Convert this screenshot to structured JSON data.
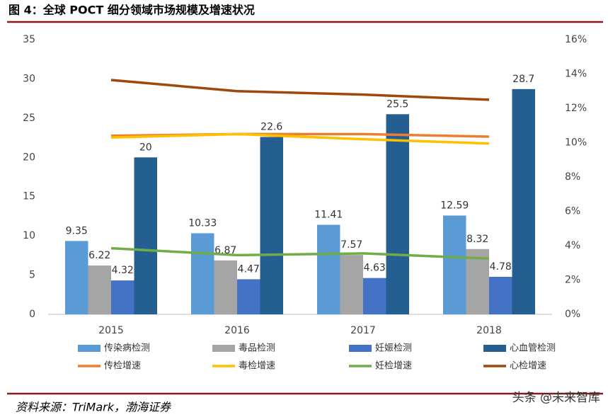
{
  "chart_data": {
    "type": "combo",
    "title": "图 4：全球 POCT 细分领域市场规模及增速状况",
    "categories": [
      "2015",
      "2016",
      "2017",
      "2018"
    ],
    "series": [
      {
        "name": "传染病检测",
        "type": "bar",
        "color": "#5b9bd5",
        "values": [
          9.35,
          10.33,
          11.41,
          12.59
        ]
      },
      {
        "name": "毒品检测",
        "type": "bar",
        "color": "#a5a5a5",
        "values": [
          6.22,
          6.87,
          7.57,
          8.32
        ]
      },
      {
        "name": "妊娠检测",
        "type": "bar",
        "color": "#4472c4",
        "values": [
          4.32,
          4.47,
          4.63,
          4.78
        ]
      },
      {
        "name": "心血管检测",
        "type": "bar",
        "color": "#255e91",
        "values": [
          20,
          22.6,
          25.5,
          28.7
        ]
      },
      {
        "name": "传检增速",
        "type": "line",
        "axis": "y2",
        "color": "#ed7d31",
        "values": [
          10.4,
          10.5,
          10.5,
          10.35
        ]
      },
      {
        "name": "毒检增速",
        "type": "line",
        "axis": "y2",
        "color": "#ffc000",
        "values": [
          10.3,
          10.5,
          10.2,
          9.95
        ]
      },
      {
        "name": "妊检增速",
        "type": "line",
        "axis": "y2",
        "color": "#70ad47",
        "values": [
          3.85,
          3.45,
          3.55,
          3.25
        ]
      },
      {
        "name": "心检增速",
        "type": "line",
        "axis": "y2",
        "color": "#9e480e",
        "values": [
          13.65,
          13.0,
          12.8,
          12.5
        ]
      }
    ],
    "ylim": [
      0,
      35
    ],
    "yticks": [
      0,
      5,
      10,
      15,
      20,
      25,
      30,
      35
    ],
    "y2lim": [
      0,
      16
    ],
    "y2ticks": [
      {
        "value": 0,
        "label": "0%"
      },
      {
        "value": 2,
        "label": "2%"
      },
      {
        "value": 4,
        "label": "4%"
      },
      {
        "value": 6,
        "label": "6%"
      },
      {
        "value": 8,
        "label": "8%"
      },
      {
        "value": 10,
        "label": "10%"
      },
      {
        "value": 12,
        "label": "12%"
      },
      {
        "value": 14,
        "label": "14%"
      },
      {
        "value": 16,
        "label": "16%"
      }
    ],
    "legend": "bottom",
    "grid": false
  },
  "source": "资料来源：TriMark，渤海证券",
  "watermark": "头条 @未来智库"
}
